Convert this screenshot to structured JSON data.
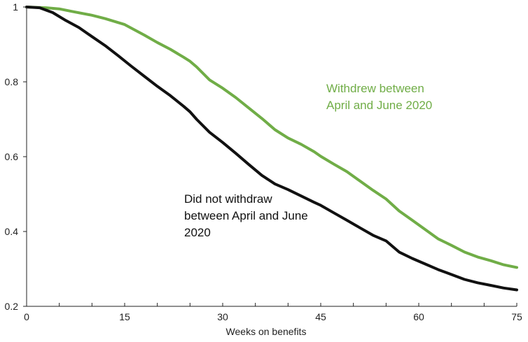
{
  "chart_data": {
    "type": "line",
    "title": "",
    "xlabel": "Weeks on benefits",
    "ylabel": "",
    "xlim": [
      0,
      75
    ],
    "ylim": [
      0.2,
      1.0
    ],
    "x_ticks": [
      0,
      15,
      30,
      45,
      60,
      75
    ],
    "y_ticks": [
      0.2,
      0.4,
      0.6,
      0.8,
      1.0
    ],
    "y_tick_labels": [
      "0.2",
      "0.4",
      "0.6",
      "0.8",
      "1"
    ],
    "grid": false,
    "legend": "none",
    "series": [
      {
        "color": "#70ad47",
        "x": [
          0,
          3,
          5,
          7,
          10,
          12,
          15,
          18,
          20,
          22,
          24,
          25,
          26,
          28,
          30,
          32,
          34,
          36,
          38,
          40,
          42,
          44,
          45,
          47,
          49,
          51,
          53,
          55,
          57,
          59,
          61,
          63,
          65,
          67,
          69,
          71,
          73,
          75
        ],
        "y": [
          1.0,
          0.998,
          0.995,
          0.988,
          0.978,
          0.969,
          0.953,
          0.925,
          0.905,
          0.887,
          0.866,
          0.855,
          0.84,
          0.805,
          0.783,
          0.758,
          0.73,
          0.702,
          0.672,
          0.65,
          0.633,
          0.613,
          0.601,
          0.58,
          0.56,
          0.535,
          0.51,
          0.487,
          0.455,
          0.43,
          0.405,
          0.38,
          0.363,
          0.345,
          0.332,
          0.322,
          0.311,
          0.304
        ]
      },
      {
        "color": "#111111",
        "x": [
          0,
          2,
          4,
          6,
          8,
          10,
          12,
          14,
          16,
          18,
          20,
          22,
          24,
          25,
          26,
          28,
          30,
          32,
          34,
          36,
          38,
          40,
          42,
          44,
          45,
          47,
          49,
          51,
          53,
          55,
          57,
          59,
          61,
          63,
          65,
          67,
          69,
          71,
          73,
          75
        ],
        "y": [
          1.0,
          0.998,
          0.985,
          0.964,
          0.945,
          0.921,
          0.897,
          0.87,
          0.842,
          0.815,
          0.788,
          0.763,
          0.735,
          0.72,
          0.7,
          0.665,
          0.638,
          0.609,
          0.579,
          0.55,
          0.527,
          0.512,
          0.495,
          0.478,
          0.47,
          0.45,
          0.43,
          0.41,
          0.39,
          0.375,
          0.345,
          0.328,
          0.313,
          0.298,
          0.285,
          0.272,
          0.263,
          0.256,
          0.249,
          0.244
        ]
      }
    ],
    "annotations": [
      {
        "series_index": 0,
        "lines": [
          "Withdrew between",
          "April and June 2020"
        ]
      },
      {
        "series_index": 1,
        "lines": [
          "Did not withdraw",
          "between April and June",
          "2020"
        ]
      }
    ]
  }
}
